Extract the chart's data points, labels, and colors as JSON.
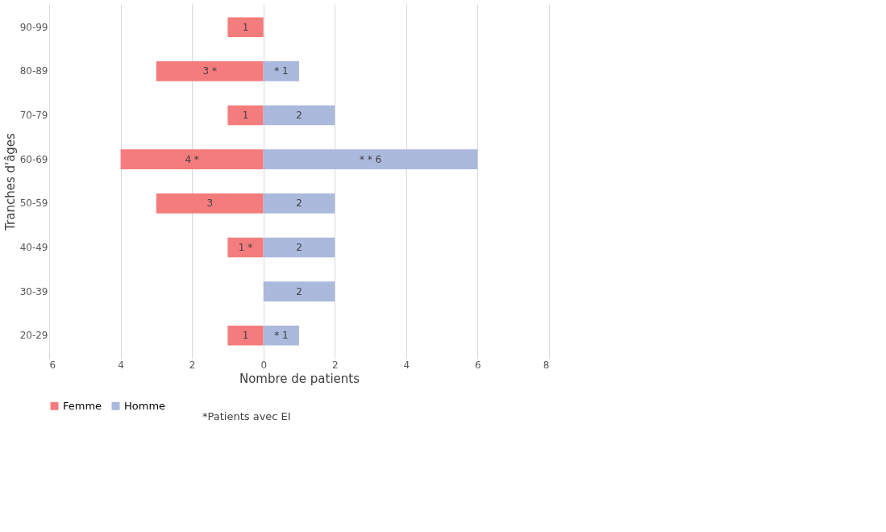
{
  "chart_data": {
    "type": "bar",
    "orientation": "horizontal",
    "xlabel": "Nombre de patients",
    "ylabel": "Tranches d'âges",
    "categories": [
      "90-99",
      "80-89",
      "70-79",
      "60-69",
      "50-59",
      "40-49",
      "30-39",
      "20-29"
    ],
    "series": [
      {
        "name": "Femme",
        "color": "#f47c7c",
        "values": [
          1,
          3,
          1,
          4,
          3,
          1,
          null,
          1
        ],
        "base": [
          -1,
          -3,
          -1,
          -4,
          -3,
          -1,
          null,
          -1
        ],
        "value_labels": [
          "1",
          "3 *",
          "1",
          "4 *",
          "3",
          "1 *",
          null,
          "1"
        ]
      },
      {
        "name": "Homme",
        "color": "#aab9dc",
        "values": [
          null,
          1,
          2,
          6,
          2,
          2,
          2,
          1
        ],
        "value_labels": [
          null,
          "* 1",
          "2",
          "* * 6",
          "2",
          "2",
          "2",
          "* 1"
        ]
      }
    ],
    "xlim": [
      -6,
      8
    ],
    "xticks": [
      {
        "value": -6,
        "label": "6"
      },
      {
        "value": -4,
        "label": "4"
      },
      {
        "value": -2,
        "label": "2"
      },
      0,
      2,
      4,
      6,
      8
    ],
    "grid": "x",
    "legend": "bottom",
    "annotations": [
      "*Patients avec EI"
    ]
  }
}
